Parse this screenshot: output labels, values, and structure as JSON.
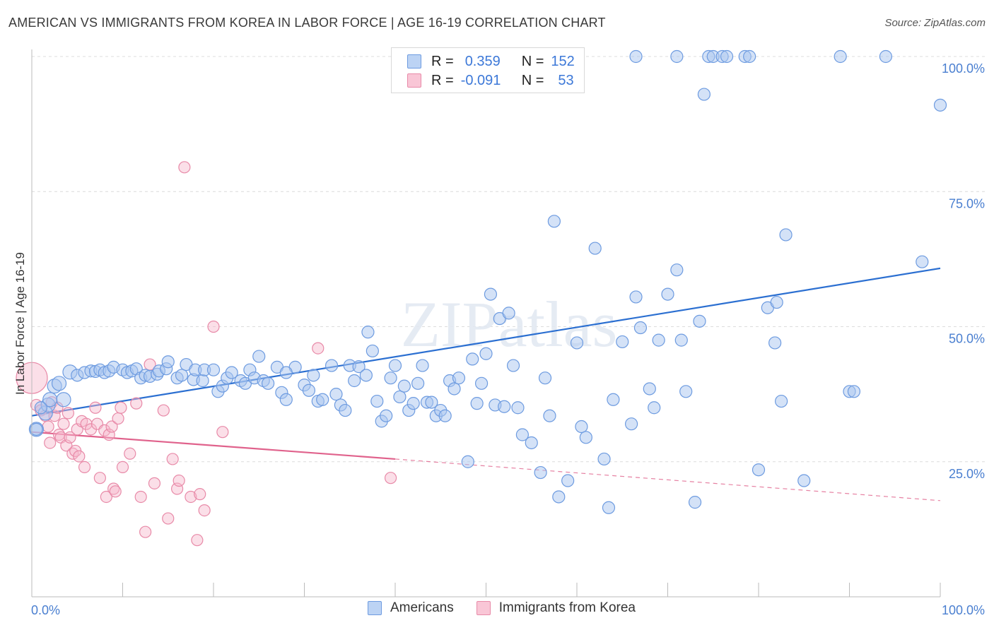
{
  "header": {
    "title": "AMERICAN VS IMMIGRANTS FROM KOREA IN LABOR FORCE | AGE 16-19 CORRELATION CHART",
    "source": "Source: ZipAtlas.com"
  },
  "legend": {
    "rows": [
      {
        "r_label": "R =",
        "r_value": "0.359",
        "n_label": "N =",
        "n_value": "152"
      },
      {
        "r_label": "R =",
        "r_value": "-0.091",
        "n_label": "N =",
        "n_value": "53"
      }
    ]
  },
  "bottom_legend": [
    "Americans",
    "Immigrants from Korea"
  ],
  "watermark": "ZIPatlas",
  "colors": {
    "blue_fill": "#a9c6f0",
    "blue_stroke": "#6d9be0",
    "blue_line": "#2b6fd1",
    "pink_fill": "#f6b8cb",
    "pink_stroke": "#e88aa8",
    "pink_line": "#e0628c",
    "tick_text": "#4a7fd0"
  },
  "chart_data": {
    "type": "scatter",
    "title": "AMERICAN VS IMMIGRANTS FROM KOREA IN LABOR FORCE | AGE 16-19 CORRELATION CHART",
    "xlabel": "",
    "ylabel": "In Labor Force | Age 16-19",
    "x_tick_labels": [
      "0.0%",
      "100.0%"
    ],
    "y_tick_labels": [
      "25.0%",
      "50.0%",
      "75.0%",
      "100.0%"
    ],
    "xlim": [
      0,
      100
    ],
    "ylim": [
      0,
      102
    ],
    "grid": true,
    "legend_position": "top-center",
    "series": [
      {
        "name": "Americans",
        "r": 0.359,
        "n": 152,
        "trend": {
          "x": [
            0,
            100
          ],
          "y": [
            33.5,
            60.8
          ],
          "style": "solid"
        },
        "points": [
          [
            0.5,
            31
          ],
          [
            1.5,
            34
          ],
          [
            1.8,
            35.5
          ],
          [
            2,
            36.5
          ],
          [
            2.5,
            39
          ],
          [
            3.5,
            36.5
          ],
          [
            3,
            39.5
          ],
          [
            4.2,
            41.6
          ],
          [
            5,
            41
          ],
          [
            5.8,
            41.5
          ],
          [
            6.5,
            41.8
          ],
          [
            7,
            41.7
          ],
          [
            7.5,
            42
          ],
          [
            8,
            41.5
          ],
          [
            8.5,
            41.8
          ],
          [
            9,
            42.5
          ],
          [
            10,
            42
          ],
          [
            10.5,
            41.5
          ],
          [
            11,
            41.8
          ],
          [
            11.5,
            42.2
          ],
          [
            12,
            40.5
          ],
          [
            12.5,
            41
          ],
          [
            13,
            40.8
          ],
          [
            13.8,
            41.2
          ],
          [
            14,
            41.8
          ],
          [
            14.8,
            42.2
          ],
          [
            15,
            43.5
          ],
          [
            16,
            40.5
          ],
          [
            16.5,
            41
          ],
          [
            17,
            43
          ],
          [
            17.8,
            40.2
          ],
          [
            18,
            42
          ],
          [
            18.8,
            40
          ],
          [
            19,
            42
          ],
          [
            20,
            42
          ],
          [
            20.5,
            38
          ],
          [
            21,
            39
          ],
          [
            21.5,
            40.5
          ],
          [
            22,
            41.5
          ],
          [
            23,
            40
          ],
          [
            23.5,
            39.5
          ],
          [
            24,
            42
          ],
          [
            24.5,
            40.5
          ],
          [
            25,
            44.5
          ],
          [
            25.5,
            40
          ],
          [
            26,
            39.5
          ],
          [
            27,
            42.5
          ],
          [
            27.5,
            37.8
          ],
          [
            28,
            36.5
          ],
          [
            29,
            42.5
          ],
          [
            30,
            39.2
          ],
          [
            30.5,
            38.2
          ],
          [
            31,
            41
          ],
          [
            31.5,
            36.2
          ],
          [
            32,
            36.5
          ],
          [
            33,
            42.8
          ],
          [
            33.5,
            37.5
          ],
          [
            34,
            35.5
          ],
          [
            34.5,
            34.5
          ],
          [
            35,
            42.8
          ],
          [
            35.5,
            40
          ],
          [
            36,
            42.6
          ],
          [
            36.8,
            41
          ],
          [
            37,
            49
          ],
          [
            37.5,
            45.5
          ],
          [
            38,
            36.2
          ],
          [
            38.5,
            32.5
          ],
          [
            39,
            33.5
          ],
          [
            39.5,
            40.5
          ],
          [
            40,
            42.8
          ],
          [
            40.5,
            37
          ],
          [
            41,
            39
          ],
          [
            41.5,
            34.5
          ],
          [
            42,
            35.8
          ],
          [
            42.5,
            39.5
          ],
          [
            43,
            42.8
          ],
          [
            43.5,
            36
          ],
          [
            44,
            36
          ],
          [
            44.5,
            33.5
          ],
          [
            45,
            34.5
          ],
          [
            45.5,
            33.5
          ],
          [
            46,
            40
          ],
          [
            46.5,
            38.5
          ],
          [
            47,
            40.5
          ],
          [
            48,
            25
          ],
          [
            48.5,
            44
          ],
          [
            49,
            35.8
          ],
          [
            49.5,
            39.5
          ],
          [
            50,
            45
          ],
          [
            50.5,
            56
          ],
          [
            51,
            35.5
          ],
          [
            51.5,
            51.5
          ],
          [
            52,
            35.2
          ],
          [
            52.5,
            52.5
          ],
          [
            53,
            42.8
          ],
          [
            53.5,
            35
          ],
          [
            54,
            30
          ],
          [
            55,
            28.5
          ],
          [
            56,
            23
          ],
          [
            56.5,
            40.5
          ],
          [
            57,
            33.5
          ],
          [
            57.5,
            69.5
          ],
          [
            58,
            18.5
          ],
          [
            59,
            21.5
          ],
          [
            60,
            47
          ],
          [
            60.5,
            31.5
          ],
          [
            61,
            29.5
          ],
          [
            62,
            64.5
          ],
          [
            63,
            25.5
          ],
          [
            63.5,
            16.5
          ],
          [
            64,
            36.5
          ],
          [
            65,
            47.2
          ],
          [
            66,
            32
          ],
          [
            66.5,
            55.5
          ],
          [
            67,
            49.8
          ],
          [
            68,
            38.5
          ],
          [
            68.5,
            35
          ],
          [
            69,
            47.5
          ],
          [
            70,
            56
          ],
          [
            71,
            60.5
          ],
          [
            71.5,
            47.5
          ],
          [
            72,
            38
          ],
          [
            73,
            17.5
          ],
          [
            73.5,
            51
          ],
          [
            74,
            93
          ],
          [
            74.5,
            100
          ],
          [
            75,
            100
          ],
          [
            76,
            100
          ],
          [
            76.5,
            100
          ],
          [
            78.5,
            100
          ],
          [
            79,
            100
          ],
          [
            80,
            23.5
          ],
          [
            81,
            53.5
          ],
          [
            81.8,
            47
          ],
          [
            82,
            54.5
          ],
          [
            82.5,
            36.2
          ],
          [
            83,
            67
          ],
          [
            85,
            21.5
          ],
          [
            89,
            100
          ],
          [
            90,
            38
          ],
          [
            90.5,
            38
          ],
          [
            94,
            100
          ],
          [
            98,
            62
          ],
          [
            100,
            91
          ],
          [
            0.5,
            31
          ],
          [
            1,
            35
          ],
          [
            28,
            41.5
          ],
          [
            60,
            100
          ],
          [
            66.5,
            100
          ],
          [
            71,
            100
          ]
        ]
      },
      {
        "name": "Immigrants from Korea",
        "r": -0.091,
        "n": 53,
        "trend": {
          "x": [
            0,
            40
          ],
          "y": [
            30.5,
            25.5
          ],
          "style": "solid",
          "extended": {
            "x": [
              40,
              100
            ],
            "y": [
              25.5,
              17.8
            ]
          }
        },
        "points": [
          [
            0,
            40.5
          ],
          [
            0.5,
            35.5
          ],
          [
            1,
            34.5
          ],
          [
            1.5,
            33.5
          ],
          [
            1.8,
            31.5
          ],
          [
            2,
            28.5
          ],
          [
            2.2,
            36
          ],
          [
            2.5,
            33.5
          ],
          [
            2.8,
            35
          ],
          [
            3,
            30
          ],
          [
            3.2,
            29.5
          ],
          [
            3.5,
            32
          ],
          [
            3.8,
            28
          ],
          [
            4,
            34
          ],
          [
            4.2,
            29.5
          ],
          [
            4.5,
            26.5
          ],
          [
            4.8,
            27
          ],
          [
            5,
            31
          ],
          [
            5.2,
            26
          ],
          [
            5.5,
            32.5
          ],
          [
            5.8,
            24
          ],
          [
            6,
            32
          ],
          [
            6.5,
            31
          ],
          [
            7,
            35
          ],
          [
            7.2,
            32
          ],
          [
            7.5,
            22
          ],
          [
            8,
            30.8
          ],
          [
            8.2,
            18.5
          ],
          [
            8.5,
            30
          ],
          [
            8.8,
            31.5
          ],
          [
            9,
            20
          ],
          [
            9.2,
            19.5
          ],
          [
            9.5,
            33
          ],
          [
            9.8,
            35
          ],
          [
            10,
            24
          ],
          [
            10.8,
            26.5
          ],
          [
            11.5,
            35.8
          ],
          [
            12,
            18.5
          ],
          [
            12.5,
            12
          ],
          [
            13,
            43
          ],
          [
            13.5,
            21
          ],
          [
            14.5,
            34.5
          ],
          [
            15,
            14.5
          ],
          [
            15.5,
            25.5
          ],
          [
            16,
            20
          ],
          [
            16.2,
            21.5
          ],
          [
            16.8,
            79.5
          ],
          [
            17.5,
            18.5
          ],
          [
            18.2,
            10.5
          ],
          [
            18.5,
            19
          ],
          [
            19,
            16
          ],
          [
            20,
            50
          ],
          [
            21,
            30.5
          ],
          [
            31.5,
            46
          ],
          [
            39.5,
            22
          ]
        ]
      }
    ]
  }
}
